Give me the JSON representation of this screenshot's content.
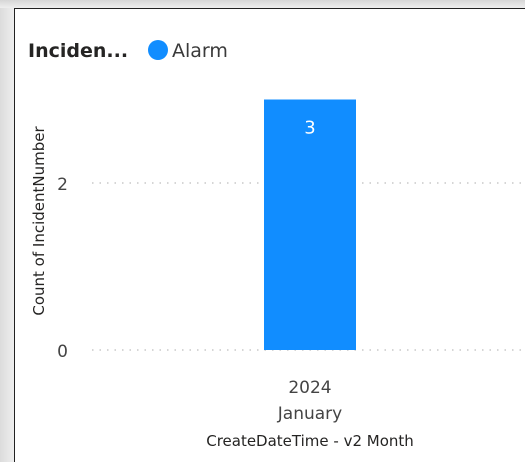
{
  "chart_data": {
    "type": "bar",
    "legend": {
      "title": "Inciden...",
      "entries": [
        {
          "name": "Alarm",
          "color": "#118DFF"
        }
      ],
      "placement": "top-left"
    },
    "categories": [
      {
        "year": "2024",
        "month": "January"
      }
    ],
    "series": [
      {
        "name": "Alarm",
        "values": [
          3
        ],
        "color": "#118DFF"
      }
    ],
    "data_labels": [
      "3"
    ],
    "xlabel": "CreateDateTime - v2 Month",
    "ylabel": "Count of IncidentNumber",
    "yticks": [
      0,
      2
    ],
    "ylim": [
      0,
      3
    ],
    "grid": "horizontal-dotted"
  }
}
